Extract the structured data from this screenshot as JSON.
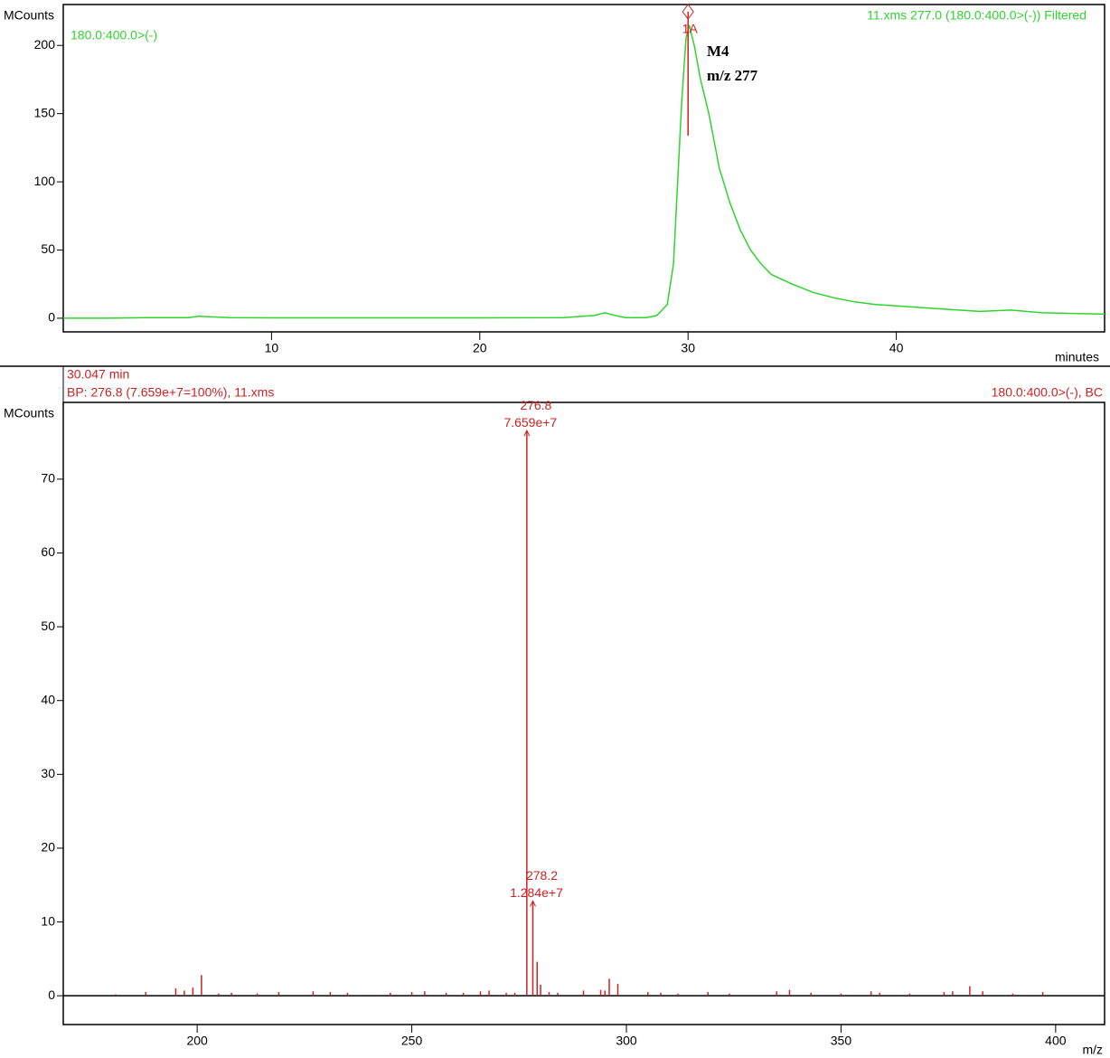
{
  "chart_data": [
    {
      "type": "line",
      "trace_label": "180.0:400.0>(-)",
      "title": "11.xms 277.0 (180.0:400.0>(-)) Filtered",
      "y_label": "MCounts",
      "x_label": "minutes",
      "peak_marker": {
        "text": "1A",
        "x": 30.0
      },
      "peak_note": [
        "M4",
        "m/z 277"
      ],
      "color": "#2fd42f",
      "x": [
        0,
        2,
        4,
        6,
        6.5,
        8,
        10,
        15,
        20,
        24,
        25.5,
        26,
        26.5,
        27,
        28,
        28.5,
        29,
        29.3,
        29.5,
        29.7,
        29.9,
        30.05,
        30.3,
        30.6,
        31,
        31.5,
        32,
        32.5,
        33,
        33.5,
        34,
        35,
        36,
        37,
        38,
        39,
        40,
        42,
        44,
        45.5,
        47,
        50
      ],
      "values": [
        0,
        0,
        0.5,
        0.5,
        1.5,
        0.5,
        0.3,
        0.3,
        0.3,
        0.5,
        2,
        4,
        2,
        0.5,
        0.5,
        2,
        10,
        40,
        100,
        160,
        205,
        215,
        200,
        175,
        150,
        110,
        85,
        65,
        50,
        40,
        32,
        25,
        19,
        15,
        12,
        10,
        9,
        7,
        5,
        6,
        4,
        3
      ],
      "xlim": [
        0,
        50
      ],
      "ylim": [
        -10,
        230
      ],
      "xticks": [
        10,
        20,
        30,
        40
      ],
      "yticks": [
        0,
        50,
        100,
        150,
        200
      ]
    },
    {
      "type": "stem",
      "header": [
        "30.047 min",
        "BP: 276.8 (7.659e+7=100%), 11.xms"
      ],
      "title": "180.0:400.0>(-), BC",
      "y_label": "MCounts",
      "x_label": "m/z",
      "color": "#cc2222",
      "x": [
        181,
        188,
        195,
        197,
        199,
        201,
        205,
        208,
        214,
        219,
        227,
        231,
        235,
        245,
        250,
        253,
        258,
        262,
        266,
        268,
        272,
        274,
        276.8,
        278.2,
        279.2,
        280,
        282,
        284,
        290,
        294,
        295,
        296,
        298,
        305,
        308,
        312,
        319,
        324,
        335,
        338,
        343,
        350,
        357,
        359,
        366,
        374,
        376,
        380,
        383,
        390,
        397
      ],
      "values": [
        0.2,
        0.5,
        1.0,
        0.7,
        1.1,
        2.8,
        0.3,
        0.4,
        0.3,
        0.5,
        0.6,
        0.5,
        0.4,
        0.4,
        0.5,
        0.6,
        0.4,
        0.4,
        0.6,
        0.7,
        0.4,
        0.4,
        76.59,
        12.84,
        4.6,
        1.5,
        0.5,
        0.4,
        0.7,
        0.8,
        0.7,
        2.3,
        1.6,
        0.5,
        0.4,
        0.3,
        0.5,
        0.3,
        0.6,
        0.8,
        0.4,
        0.3,
        0.6,
        0.4,
        0.3,
        0.5,
        0.6,
        1.3,
        0.6,
        0.3,
        0.5
      ],
      "x_labels": [
        null,
        null,
        null,
        null,
        null,
        null,
        null,
        null,
        null,
        null,
        null,
        null,
        null,
        null,
        null,
        null,
        null,
        null,
        null,
        null,
        null,
        null,
        "276.8",
        "278.2",
        null,
        null,
        null,
        null,
        null,
        null,
        null,
        null,
        null,
        null,
        null,
        null,
        null,
        null,
        null,
        null,
        null,
        null,
        null,
        null,
        null,
        null,
        null,
        null,
        null,
        null,
        null
      ],
      "value_labels": [
        null,
        null,
        null,
        null,
        null,
        null,
        null,
        null,
        null,
        null,
        null,
        null,
        null,
        null,
        null,
        null,
        null,
        null,
        null,
        null,
        null,
        null,
        "7.659e+7",
        "1.284e+7",
        null,
        null,
        null,
        null,
        null,
        null,
        null,
        null,
        null,
        null,
        null,
        null,
        null,
        null,
        null,
        null,
        null,
        null,
        null,
        null,
        null,
        null,
        null,
        null,
        null,
        null,
        null
      ],
      "xlim": [
        168.8,
        411.4
      ],
      "ylim": [
        -3.9,
        80.4
      ],
      "xticks": [
        200,
        250,
        300,
        350,
        400
      ],
      "yticks": [
        0,
        10,
        20,
        30,
        40,
        50,
        60,
        70
      ]
    }
  ]
}
